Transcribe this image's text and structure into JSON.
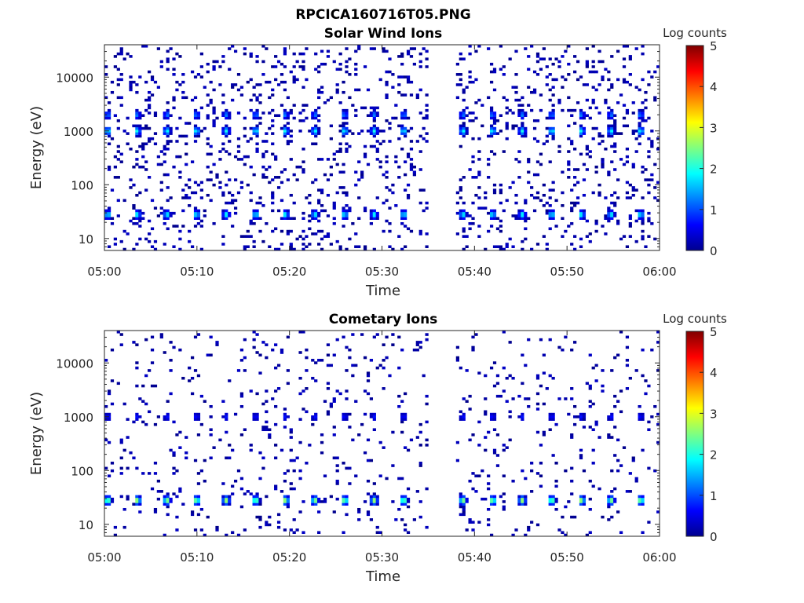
{
  "figure": {
    "title": "RPCICA160716T05.PNG",
    "background": "#ffffff"
  },
  "chart_data": [
    {
      "type": "heatmap",
      "title": "Solar Wind Ions",
      "xlabel": "Time",
      "ylabel": "Energy (eV)",
      "x_ticks": [
        "05:00",
        "05:10",
        "05:20",
        "05:30",
        "05:40",
        "05:50",
        "06:00"
      ],
      "xlim": [
        "05:00",
        "06:00"
      ],
      "y_scale": "log",
      "y_ticks": [
        10,
        100,
        1000,
        10000
      ],
      "y_tick_labels": [
        "10",
        "100",
        "1000",
        "10000"
      ],
      "ylim": [
        6,
        40000
      ],
      "colorbar": {
        "label": "Log counts",
        "ticks": [
          "0",
          "1",
          "2",
          "3",
          "4",
          "5"
        ],
        "range": [
          0,
          5
        ],
        "colormap": "jet"
      },
      "data_gap": [
        "05:35",
        "05:38"
      ],
      "cycle_minutes": 3.2,
      "features": [
        {
          "energy_eV": 1000,
          "peak_log_counts": 2.0
        },
        {
          "energy_eV": 2000,
          "peak_log_counts": 1.3
        },
        {
          "energy_eV": 28,
          "peak_log_counts": 2.0
        }
      ],
      "background_noise_log_counts": 0.1
    },
    {
      "type": "heatmap",
      "title": "Cometary Ions",
      "xlabel": "Time",
      "ylabel": "Energy (eV)",
      "x_ticks": [
        "05:00",
        "05:10",
        "05:20",
        "05:30",
        "05:40",
        "05:50",
        "06:00"
      ],
      "xlim": [
        "05:00",
        "06:00"
      ],
      "y_scale": "log",
      "y_ticks": [
        10,
        100,
        1000,
        10000
      ],
      "y_tick_labels": [
        "10",
        "100",
        "1000",
        "10000"
      ],
      "ylim": [
        6,
        40000
      ],
      "colorbar": {
        "label": "Log counts",
        "ticks": [
          "0",
          "1",
          "2",
          "3",
          "4",
          "5"
        ],
        "range": [
          0,
          5
        ],
        "colormap": "jet"
      },
      "data_gap": [
        "05:35",
        "05:38"
      ],
      "cycle_minutes": 3.2,
      "features": [
        {
          "energy_eV": 28,
          "peak_log_counts": 2.9
        },
        {
          "energy_eV": 1000,
          "peak_log_counts": 0.7
        }
      ],
      "background_noise_log_counts": 0.05
    }
  ]
}
